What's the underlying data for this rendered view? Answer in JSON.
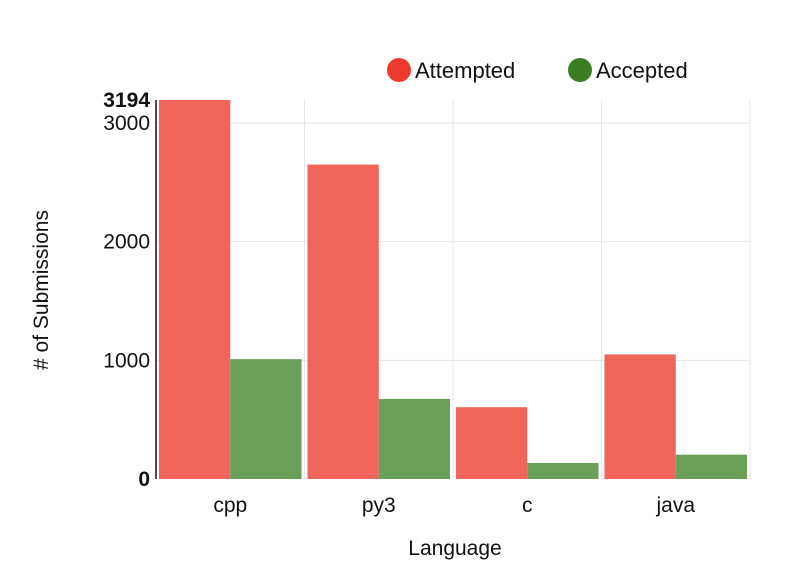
{
  "chart_data": {
    "type": "bar",
    "title": "",
    "xlabel": "Language",
    "ylabel": "# of Submissions",
    "categories": [
      "cpp",
      "py3",
      "c",
      "java"
    ],
    "series": [
      {
        "name": "Attempted",
        "color": "#f0645a",
        "values": [
          3194,
          2650,
          605,
          1050
        ]
      },
      {
        "name": "Accepted",
        "color": "#6a9f58",
        "values": [
          1010,
          675,
          135,
          205
        ]
      }
    ],
    "ylim": [
      0,
      3194
    ],
    "yticks": [
      0,
      1000,
      2000,
      3000,
      3194
    ],
    "legend_markers": {
      "Attempted": "#ee3a2e",
      "Accepted": "#3a7d22"
    },
    "legend_position": "top-right",
    "grid": true
  }
}
